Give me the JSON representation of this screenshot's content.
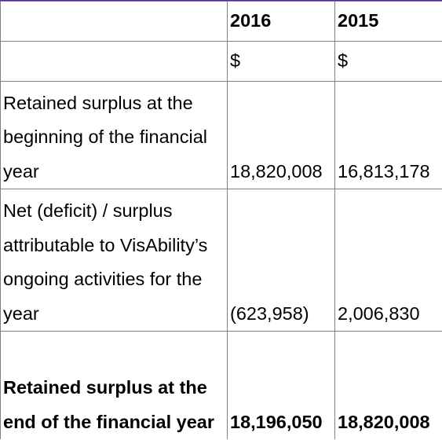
{
  "table": {
    "headers": [
      "",
      "2016",
      "2015"
    ],
    "units": [
      "",
      "$",
      "$"
    ],
    "rows": [
      {
        "label": "Retained surplus at the beginning of the financial year",
        "values": [
          "18,820,008",
          "16,813,178"
        ],
        "bold": false
      },
      {
        "label": "Net (deficit) / surplus attributable to VisAbility’s ongoing activities for the year",
        "values": [
          "(623,958)",
          "2,006,830"
        ],
        "bold": false
      },
      {
        "label": "Retained surplus at the end of the financial year",
        "values": [
          "18,196,050",
          "18,820,008"
        ],
        "bold": true
      }
    ]
  },
  "colors": {
    "border": "#7f7f7f",
    "top_accent": "#4b2e83",
    "text": "#000000",
    "background": "#ffffff"
  }
}
